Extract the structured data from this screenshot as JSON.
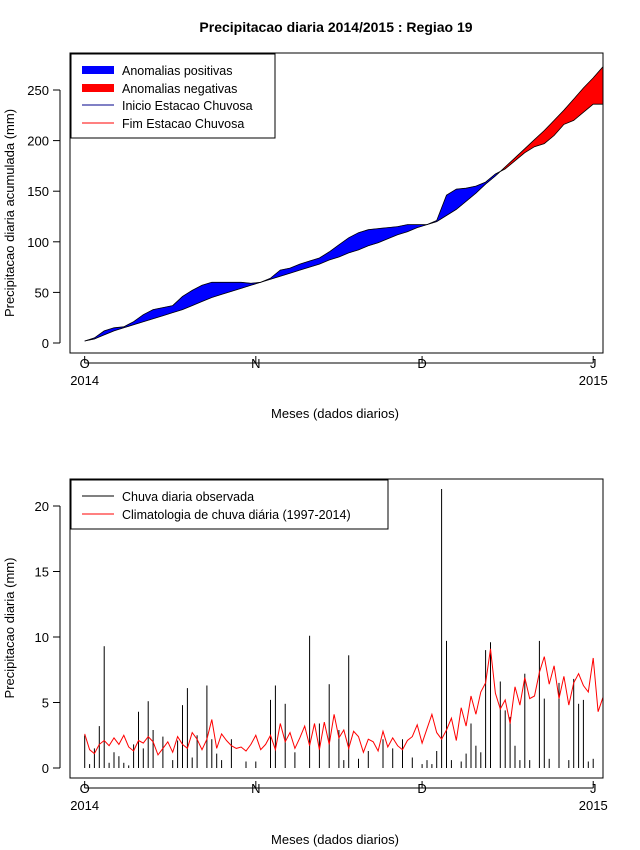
{
  "figure_title": "Precipitacao diaria 2014/2015 : Regiao 19",
  "chart_data": [
    {
      "type": "area",
      "xlabel": "Meses (dados diarios)",
      "ylabel": "Precipitacao diaria acumulada (mm)",
      "ylim": [
        0,
        275
      ],
      "xlim_days": [
        -3,
        106
      ],
      "yticks": [
        0,
        50,
        100,
        150,
        200,
        250
      ],
      "xticks": [
        {
          "day": 0,
          "label": "O",
          "year": "2014"
        },
        {
          "day": 35,
          "label": "N",
          "year": ""
        },
        {
          "day": 69,
          "label": "D",
          "year": ""
        },
        {
          "day": 104,
          "label": "J",
          "year": "2015"
        }
      ],
      "legend": [
        {
          "label": "Anomalias positivas",
          "color": "#0000ff",
          "kind": "thick"
        },
        {
          "label": "Anomalias negativas",
          "color": "#ff0000",
          "kind": "thick"
        },
        {
          "label": "Inicio Estacao Chuvosa",
          "color": "#00008b",
          "kind": "line"
        },
        {
          "label": "Fim Estacao Chuvosa",
          "color": "#ff0000",
          "kind": "line"
        }
      ],
      "legend_position": "top-left",
      "observed_cumulative": {
        "x": [
          0,
          2,
          4,
          6,
          8,
          10,
          12,
          14,
          16,
          18,
          20,
          22,
          24,
          26,
          28,
          30,
          32,
          34,
          36,
          38,
          40,
          42,
          44,
          46,
          48,
          50,
          52,
          54,
          56,
          58,
          60,
          62,
          64,
          66,
          68,
          70,
          72,
          74,
          76,
          78,
          80,
          82,
          84,
          86,
          88,
          90,
          92,
          94,
          96,
          98,
          100,
          102,
          104,
          106
        ],
        "y": [
          2,
          5,
          12,
          15,
          16,
          21,
          28,
          33,
          35,
          37,
          46,
          52,
          57,
          60,
          60,
          60,
          60,
          59,
          60,
          64,
          72,
          74,
          78,
          81,
          84,
          90,
          97,
          104,
          109,
          112,
          113,
          114,
          115,
          117,
          117,
          117,
          121,
          146,
          152,
          153,
          155,
          159,
          167,
          172,
          180,
          188,
          194,
          197,
          205,
          216,
          220,
          228,
          236,
          236
        ]
      },
      "climatology_cumulative": {
        "x": [
          0,
          2,
          4,
          6,
          8,
          10,
          12,
          14,
          16,
          18,
          20,
          22,
          24,
          26,
          28,
          30,
          32,
          34,
          36,
          38,
          40,
          42,
          44,
          46,
          48,
          50,
          52,
          54,
          56,
          58,
          60,
          62,
          64,
          66,
          68,
          70,
          72,
          74,
          76,
          78,
          80,
          82,
          84,
          86,
          88,
          90,
          92,
          94,
          96,
          98,
          100,
          102,
          104,
          106
        ],
        "y": [
          2,
          4,
          8,
          12,
          15,
          18,
          21,
          24,
          27,
          30,
          33,
          37,
          41,
          45,
          48,
          51,
          54,
          57,
          60,
          63,
          66,
          69,
          72,
          75,
          78,
          82,
          85,
          89,
          92,
          96,
          99,
          103,
          107,
          110,
          114,
          117,
          120,
          126,
          132,
          140,
          148,
          157,
          165,
          174,
          183,
          192,
          201,
          210,
          220,
          230,
          241,
          252,
          262,
          273
        ]
      }
    },
    {
      "type": "bar",
      "xlabel": "Meses (dados diarios)",
      "ylabel": "Precipitacao diaria (mm)",
      "ylim": [
        0,
        22
      ],
      "xlim_days": [
        -3,
        106
      ],
      "yticks": [
        0,
        5,
        10,
        15,
        20
      ],
      "xticks": [
        {
          "day": 0,
          "label": "O",
          "year": "2014"
        },
        {
          "day": 35,
          "label": "N",
          "year": ""
        },
        {
          "day": 69,
          "label": "D",
          "year": ""
        },
        {
          "day": 104,
          "label": "J",
          "year": "2015"
        }
      ],
      "legend": [
        {
          "label": "Chuva diaria observada",
          "color": "#000000",
          "kind": "line"
        },
        {
          "label": "Climatologia de chuva diária (1997-2014)",
          "color": "#ff0000",
          "kind": "line"
        }
      ],
      "legend_position": "top-left",
      "observed_daily": {
        "x": [
          0,
          1,
          2,
          3,
          4,
          5,
          6,
          7,
          8,
          9,
          10,
          11,
          12,
          13,
          14,
          16,
          18,
          19,
          20,
          21,
          22,
          23,
          25,
          26,
          27,
          28,
          30,
          33,
          35,
          38,
          39,
          41,
          43,
          46,
          48,
          50,
          52,
          53,
          54,
          56,
          58,
          61,
          63,
          65,
          67,
          69,
          70,
          71,
          72,
          73,
          74,
          75,
          77,
          78,
          79,
          80,
          81,
          82,
          83,
          85,
          86,
          87,
          88,
          89,
          90,
          91,
          93,
          94,
          95,
          97,
          99,
          100,
          101,
          102,
          103,
          104
        ],
        "y": [
          2.5,
          0.3,
          1.5,
          3.2,
          9.3,
          0.4,
          1.2,
          0.9,
          0.4,
          0.2,
          1.8,
          4.3,
          1.5,
          5.1,
          2.9,
          2.4,
          0.6,
          2.1,
          4.8,
          6.1,
          0.8,
          2.5,
          6.3,
          2.2,
          1.1,
          0.6,
          2.2,
          0.5,
          0.5,
          5.2,
          6.3,
          4.9,
          1.2,
          10.1,
          3.4,
          6.4,
          2.9,
          0.6,
          8.6,
          0.7,
          1.3,
          2.2,
          1.5,
          2.2,
          0.8,
          0.3,
          0.6,
          0.3,
          1.3,
          21.3,
          9.7,
          0.6,
          0.5,
          1.1,
          3.4,
          1.7,
          1.2,
          9.0,
          9.6,
          6.6,
          4.4,
          3.9,
          1.7,
          0.6,
          7.2,
          0.6,
          9.7,
          5.3,
          0.7,
          6.5,
          0.6,
          6.8,
          4.9,
          5.2,
          0.5,
          0.7
        ]
      },
      "climatology_daily": {
        "x": [
          0,
          1,
          2,
          3,
          4,
          5,
          6,
          7,
          8,
          9,
          10,
          11,
          12,
          13,
          14,
          15,
          16,
          17,
          18,
          19,
          20,
          21,
          22,
          23,
          24,
          25,
          26,
          27,
          28,
          29,
          30,
          31,
          32,
          33,
          34,
          35,
          36,
          37,
          38,
          39,
          40,
          41,
          42,
          43,
          44,
          45,
          46,
          47,
          48,
          49,
          50,
          51,
          52,
          53,
          54,
          55,
          56,
          57,
          58,
          59,
          60,
          61,
          62,
          63,
          64,
          65,
          66,
          67,
          68,
          69,
          70,
          71,
          72,
          73,
          74,
          75,
          76,
          77,
          78,
          79,
          80,
          81,
          82,
          83,
          84,
          85,
          86,
          87,
          88,
          89,
          90,
          91,
          92,
          93,
          94,
          95,
          96,
          97,
          98,
          99,
          100,
          101,
          102,
          103,
          104,
          105,
          106
        ],
        "y": [
          2.6,
          1.4,
          1.1,
          1.8,
          2.1,
          1.7,
          2.3,
          1.8,
          2.5,
          1.6,
          1.3,
          2.1,
          1.9,
          2.4,
          2.0,
          1.0,
          1.5,
          2.0,
          1.2,
          2.4,
          1.8,
          1.5,
          2.7,
          2.2,
          1.4,
          2.2,
          3.7,
          1.5,
          2.6,
          2.1,
          1.7,
          1.5,
          1.6,
          1.3,
          1.8,
          2.5,
          1.4,
          1.8,
          2.5,
          1.4,
          3.4,
          2.0,
          2.7,
          1.5,
          2.3,
          3.2,
          1.7,
          3.4,
          1.4,
          3.5,
          1.8,
          4.1,
          2.3,
          2.9,
          1.5,
          2.8,
          2.4,
          1.2,
          2.2,
          2.0,
          1.3,
          2.8,
          1.6,
          2.3,
          1.7,
          1.4,
          2.1,
          2.4,
          3.3,
          1.9,
          3.0,
          4.1,
          2.7,
          2.2,
          2.9,
          3.8,
          2.1,
          4.6,
          3.2,
          5.5,
          4.1,
          5.8,
          6.5,
          9.1,
          5.7,
          4.5,
          5.2,
          3.4,
          6.2,
          4.8,
          6.9,
          5.3,
          5.5,
          7.3,
          8.5,
          6.4,
          7.8,
          5.3,
          7.0,
          4.8,
          6.5,
          7.2,
          6.3,
          5.8,
          8.4,
          4.3,
          5.4
        ]
      }
    }
  ]
}
